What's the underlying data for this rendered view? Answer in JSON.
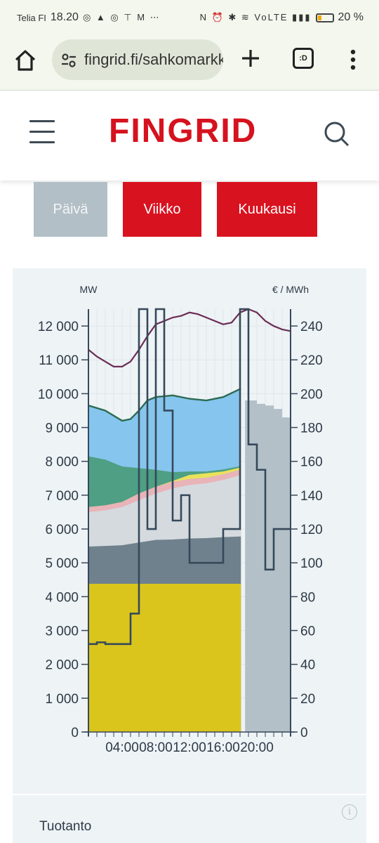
{
  "status_bar": {
    "carrier": "Telia FI",
    "time": "18.20",
    "left_icons": "◎ ▲ ◎ ⊤ M ⋯",
    "right_icons": "N ⏰ ✱ ≋ VoLTE ▮▮▮",
    "battery_percent": "20 %"
  },
  "browser": {
    "url": "fingrid.fi/sahkomarkkinat",
    "tabs_label": ":D"
  },
  "site": {
    "logo": "FINGRID"
  },
  "period_buttons": {
    "day": "Päivä",
    "week": "Viikko",
    "month": "Kuukausi"
  },
  "chart_data": {
    "type": "area",
    "left_axis_label": "MW",
    "right_axis_label": "€ / MWh",
    "x_ticks": [
      "04:00",
      "08:00",
      "12:00",
      "16:00",
      "20:00"
    ],
    "left_ticks": [
      "12 000",
      "11 000",
      "10 000",
      "9 000",
      "8 000",
      "7 000",
      "6 000",
      "5 000",
      "4 000",
      "3 000",
      "2 000",
      "1 000",
      "0"
    ],
    "left_tick_values": [
      12000,
      11000,
      10000,
      9000,
      8000,
      7000,
      6000,
      5000,
      4000,
      3000,
      2000,
      1000,
      0
    ],
    "right_ticks": [
      "240",
      "220",
      "200",
      "180",
      "160",
      "140",
      "120",
      "100",
      "80",
      "60",
      "40",
      "20",
      "0"
    ],
    "right_tick_values": [
      240,
      220,
      200,
      180,
      160,
      140,
      120,
      100,
      80,
      60,
      40,
      20,
      0
    ],
    "ylim_left": [
      0,
      12500
    ],
    "ylim_right": [
      0,
      250
    ],
    "xlim_hours": [
      0,
      24
    ],
    "grid": true,
    "stacked_series": [
      {
        "color": "#d9c51c",
        "values": [
          [
            0,
            4380
          ],
          [
            18.1,
            4380
          ]
        ]
      },
      {
        "color": "#6f818d",
        "values": [
          [
            0,
            5480
          ],
          [
            2,
            5500
          ],
          [
            4,
            5520
          ],
          [
            6,
            5600
          ],
          [
            8,
            5680
          ],
          [
            10,
            5690
          ],
          [
            12,
            5720
          ],
          [
            14,
            5730
          ],
          [
            16,
            5760
          ],
          [
            18.1,
            5780
          ]
        ]
      },
      {
        "color": "#d5dadf",
        "values": [
          [
            0,
            6500
          ],
          [
            2,
            6550
          ],
          [
            4,
            6650
          ],
          [
            6,
            6850
          ],
          [
            8,
            7050
          ],
          [
            10,
            7200
          ],
          [
            12,
            7300
          ],
          [
            14,
            7350
          ],
          [
            16,
            7450
          ],
          [
            18.1,
            7600
          ]
        ]
      },
      {
        "color": "#e8b4b8",
        "values": [
          [
            0,
            6650
          ],
          [
            2,
            6700
          ],
          [
            4,
            6800
          ],
          [
            6,
            7050
          ],
          [
            8,
            7250
          ],
          [
            10,
            7400
          ],
          [
            12,
            7480
          ],
          [
            14,
            7520
          ],
          [
            16,
            7620
          ],
          [
            18.1,
            7760
          ]
        ]
      },
      {
        "color": "#e9e35a",
        "values": [
          [
            0,
            6650
          ],
          [
            2,
            6700
          ],
          [
            4,
            6800
          ],
          [
            6,
            7050
          ],
          [
            8,
            7250
          ],
          [
            10,
            7420
          ],
          [
            12,
            7600
          ],
          [
            14,
            7650
          ],
          [
            16,
            7700
          ],
          [
            18.1,
            7820
          ]
        ]
      },
      {
        "color": "#4e9f83",
        "values": [
          [
            0,
            8150
          ],
          [
            2,
            8050
          ],
          [
            4,
            7850
          ],
          [
            6,
            7800
          ],
          [
            8,
            7750
          ],
          [
            10,
            7680
          ],
          [
            12,
            7700
          ],
          [
            14,
            7700
          ],
          [
            16,
            7760
          ],
          [
            18.1,
            7860
          ]
        ]
      },
      {
        "color": "#86c5ee",
        "values": [
          [
            0,
            9650
          ],
          [
            2,
            9500
          ],
          [
            4,
            9200
          ],
          [
            5,
            9250
          ],
          [
            6,
            9500
          ],
          [
            7,
            9800
          ],
          [
            8,
            9900
          ],
          [
            10,
            9950
          ],
          [
            12,
            9850
          ],
          [
            14,
            9800
          ],
          [
            16,
            9900
          ],
          [
            18.1,
            10150
          ]
        ]
      }
    ],
    "production_line": {
      "color": "#2c6b52",
      "values": [
        [
          0,
          9650
        ],
        [
          2,
          9500
        ],
        [
          4,
          9200
        ],
        [
          5,
          9250
        ],
        [
          6,
          9500
        ],
        [
          7,
          9800
        ],
        [
          8,
          9900
        ],
        [
          10,
          9950
        ],
        [
          12,
          9850
        ],
        [
          14,
          9800
        ],
        [
          16,
          9900
        ],
        [
          18.1,
          10150
        ]
      ]
    },
    "consumption_line": {
      "color": "#6b2d55",
      "values": [
        [
          0,
          11300
        ],
        [
          1,
          11100
        ],
        [
          2,
          10950
        ],
        [
          3,
          10800
        ],
        [
          4,
          10800
        ],
        [
          5,
          10950
        ],
        [
          6,
          11300
        ],
        [
          7,
          11700
        ],
        [
          8,
          12050
        ],
        [
          9,
          12150
        ],
        [
          10,
          12250
        ],
        [
          11,
          12300
        ],
        [
          12,
          12400
        ],
        [
          13,
          12350
        ],
        [
          14,
          12250
        ],
        [
          15,
          12150
        ],
        [
          16,
          12050
        ],
        [
          17,
          12100
        ],
        [
          18,
          12400
        ],
        [
          19,
          12500
        ],
        [
          20,
          12400
        ],
        [
          21,
          12150
        ],
        [
          22,
          12000
        ],
        [
          23,
          11900
        ],
        [
          24,
          11850
        ]
      ]
    },
    "forecast_area": {
      "color": "#b3c0c8",
      "values": [
        [
          18.6,
          9800
        ],
        [
          19,
          9800
        ],
        [
          20,
          9700
        ],
        [
          21,
          9650
        ],
        [
          22,
          9550
        ],
        [
          23,
          9300
        ],
        [
          24,
          9300
        ]
      ]
    },
    "price_step": {
      "color": "#36495a",
      "values": [
        [
          0,
          52
        ],
        [
          1,
          53
        ],
        [
          2,
          52
        ],
        [
          3,
          52
        ],
        [
          4,
          52
        ],
        [
          5,
          70
        ],
        [
          6,
          250
        ],
        [
          7,
          120
        ],
        [
          8,
          250
        ],
        [
          9,
          190
        ],
        [
          10,
          125
        ],
        [
          11,
          140
        ],
        [
          12,
          100
        ],
        [
          13,
          100
        ],
        [
          14,
          100
        ],
        [
          15,
          100
        ],
        [
          16,
          120
        ],
        [
          17,
          120
        ],
        [
          18,
          250
        ],
        [
          19,
          170
        ],
        [
          20,
          155
        ],
        [
          21,
          96
        ],
        [
          22,
          120
        ],
        [
          23,
          120
        ],
        [
          24,
          120
        ]
      ]
    }
  },
  "bottom": {
    "section_label": "Tuotanto",
    "info_icon": "i"
  },
  "colors": {
    "accent": "#d9121f",
    "inactive_button": "#b3bfc6",
    "panel_bg": "#eef3f6"
  }
}
